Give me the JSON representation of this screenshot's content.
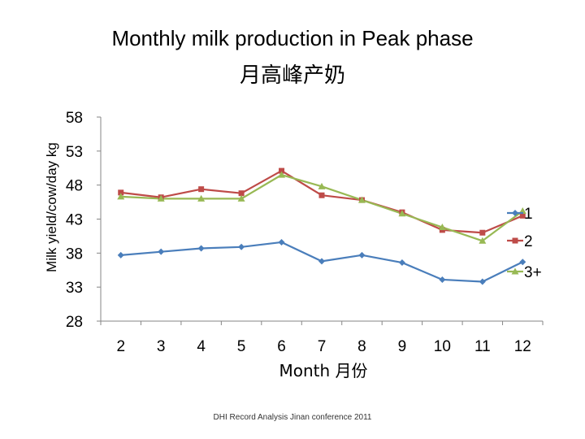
{
  "chart_data": {
    "type": "line",
    "title": "Monthly milk production in Peak phase",
    "subtitle": "月高峰产奶",
    "xlabel": "Month 月份",
    "ylabel": "Milk yield/cow/day kg",
    "categories": [
      "2",
      "3",
      "4",
      "5",
      "6",
      "7",
      "8",
      "9",
      "10",
      "11",
      "12"
    ],
    "ylim": [
      28,
      58
    ],
    "yticks": [
      "58",
      "53",
      "48",
      "43",
      "38",
      "33",
      "28"
    ],
    "grid": false,
    "legend_position": "right",
    "series": [
      {
        "name": "1",
        "color": "#4a7ebb",
        "marker": "diamond",
        "values": [
          37.7,
          38.2,
          38.7,
          38.9,
          39.6,
          36.8,
          37.7,
          36.6,
          34.1,
          33.8,
          36.7
        ]
      },
      {
        "name": "2",
        "color": "#be4b48",
        "marker": "square",
        "values": [
          46.9,
          46.2,
          47.4,
          46.8,
          50.1,
          46.5,
          45.8,
          44.0,
          41.4,
          41.0,
          43.5
        ]
      },
      {
        "name": "3+",
        "color": "#98b954",
        "marker": "triangle",
        "values": [
          46.3,
          46.0,
          46.0,
          46.0,
          49.5,
          47.8,
          45.8,
          43.8,
          41.8,
          39.8,
          44.2
        ]
      }
    ]
  },
  "footer": "DHI Record Analysis Jinan conference 2011"
}
